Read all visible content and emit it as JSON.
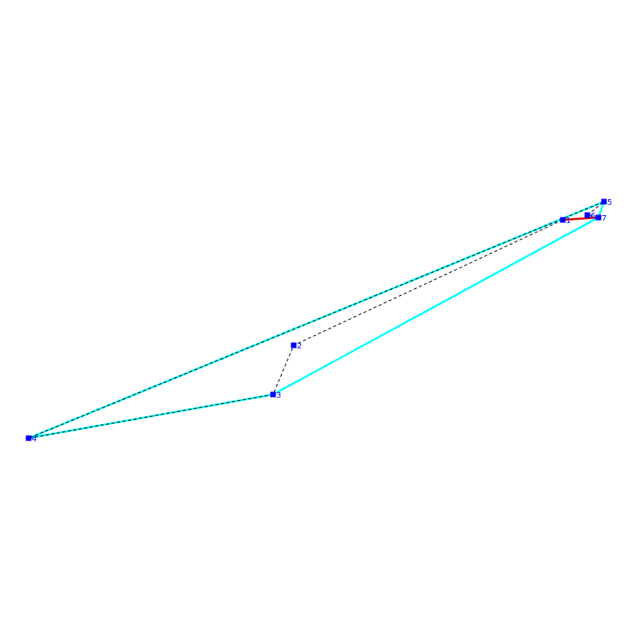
{
  "colors": {
    "background": "#ffffff",
    "hull": "#00ffff",
    "path": "#000000",
    "highlight": "#dd0000",
    "point": "#0000ff",
    "label": "#0000ff"
  },
  "points": [
    {
      "id": "p1",
      "label": "1"
    },
    {
      "id": "p2",
      "label": "2"
    },
    {
      "id": "p3",
      "label": "3"
    },
    {
      "id": "p4",
      "label": "4"
    },
    {
      "id": "p5",
      "label": "5"
    },
    {
      "id": "p6",
      "label": "6"
    },
    {
      "id": "p7",
      "label": "7"
    }
  ],
  "hull_order": [
    "p4",
    "p5",
    "p7",
    "p3",
    "p4"
  ],
  "dashed_path": [
    "p1",
    "p2",
    "p3",
    "p4",
    "p5",
    "p6",
    "p7",
    "p1"
  ],
  "highlight_segment": [
    "p1",
    "p7"
  ]
}
